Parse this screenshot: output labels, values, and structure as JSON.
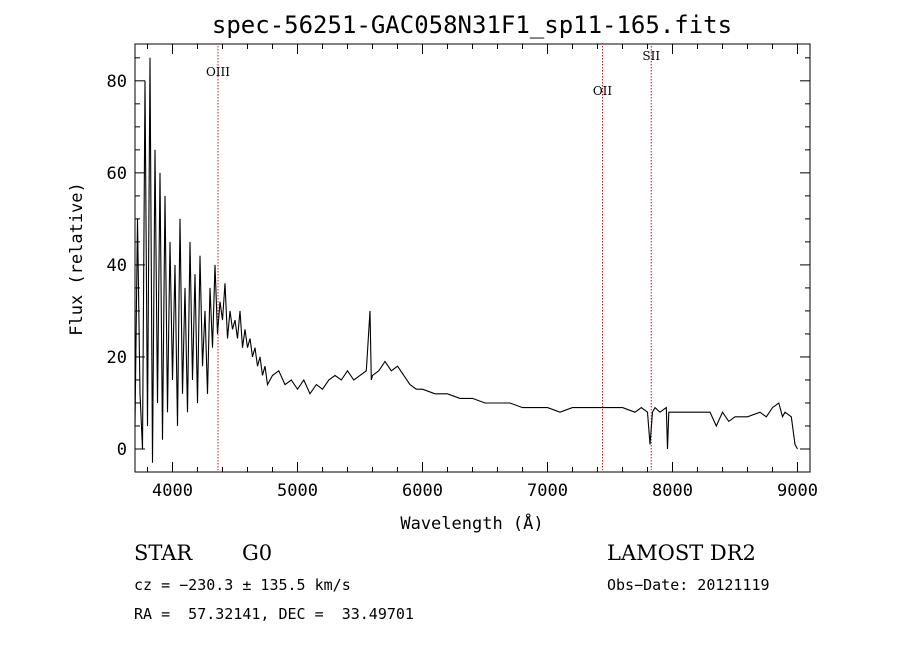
{
  "chart_data": {
    "type": "line",
    "title": "spec-56251-GAC058N31F1_sp11-165.fits",
    "xlabel": "Wavelength (Å)",
    "ylabel": "Flux (relative)",
    "xlim": [
      3700,
      9100
    ],
    "ylim": [
      -5,
      88
    ],
    "xticks": [
      4000,
      5000,
      6000,
      7000,
      8000,
      9000
    ],
    "yticks": [
      0,
      20,
      40,
      60,
      80
    ],
    "grid": false,
    "series": [
      {
        "values_x": [
          3700,
          3720,
          3740,
          3760,
          3780,
          3800,
          3820,
          3840,
          3860,
          3880,
          3900,
          3920,
          3940,
          3960,
          3980,
          4000,
          4020,
          4040,
          4060,
          4080,
          4100,
          4120,
          4140,
          4160,
          4180,
          4200,
          4220,
          4240,
          4260,
          4280,
          4300,
          4320,
          4340,
          4360,
          4380,
          4400,
          4420,
          4440,
          4460,
          4480,
          4500,
          4520,
          4540,
          4560,
          4580,
          4600,
          4620,
          4640,
          4660,
          4680,
          4700,
          4720,
          4740,
          4760,
          4780,
          4800,
          4850,
          4900,
          4950,
          5000,
          5050,
          5100,
          5150,
          5200,
          5250,
          5300,
          5350,
          5400,
          5450,
          5500,
          5550,
          5580,
          5590,
          5600,
          5650,
          5700,
          5750,
          5800,
          5850,
          5900,
          5950,
          6000,
          6100,
          6200,
          6300,
          6400,
          6500,
          6600,
          6700,
          6800,
          6900,
          7000,
          7100,
          7200,
          7300,
          7400,
          7500,
          7600,
          7700,
          7750,
          7800,
          7820,
          7840,
          7860,
          7900,
          7950,
          7960,
          7970,
          8000,
          8100,
          8200,
          8300,
          8350,
          8400,
          8450,
          8500,
          8600,
          8700,
          8750,
          8800,
          8850,
          8880,
          8900,
          8950,
          8980,
          9000
        ],
        "values_y": [
          5,
          50,
          12,
          0,
          80,
          5,
          85,
          -3,
          65,
          10,
          60,
          2,
          55,
          8,
          45,
          15,
          40,
          5,
          50,
          12,
          35,
          8,
          45,
          15,
          38,
          10,
          42,
          18,
          30,
          12,
          35,
          22,
          40,
          25,
          32,
          28,
          36,
          24,
          30,
          26,
          28,
          24,
          30,
          22,
          26,
          22,
          24,
          20,
          22,
          18,
          20,
          16,
          18,
          14,
          15,
          16,
          17,
          14,
          15,
          13,
          15,
          12,
          14,
          13,
          15,
          16,
          15,
          17,
          15,
          16,
          17,
          30,
          15,
          16,
          17,
          19,
          17,
          18,
          16,
          14,
          13,
          13,
          12,
          12,
          11,
          11,
          10,
          10,
          10,
          9,
          9,
          9,
          8,
          9,
          9,
          9,
          9,
          9,
          8,
          9,
          8,
          1,
          8,
          9,
          8,
          9,
          0,
          8,
          8,
          8,
          8,
          8,
          5,
          8,
          6,
          7,
          7,
          8,
          7,
          9,
          10,
          7,
          8,
          7,
          1,
          0
        ]
      }
    ],
    "lines": [
      {
        "x": 4364,
        "label": "OIII"
      },
      {
        "x": 7440,
        "label": "OII"
      },
      {
        "x": 7830,
        "label": "SII"
      }
    ],
    "annotations": {
      "class": "STAR",
      "subclass": "G0",
      "survey": "LAMOST DR2",
      "cz": "cz = −230.3 ± 135.5 km/s",
      "obs_date": "Obs−Date: 20121119",
      "radec": "RA =  57.32141, DEC =  33.49701"
    },
    "colors": {
      "axis": "#000000",
      "spectrum": "#000000",
      "line_marker": "#b22222"
    }
  }
}
